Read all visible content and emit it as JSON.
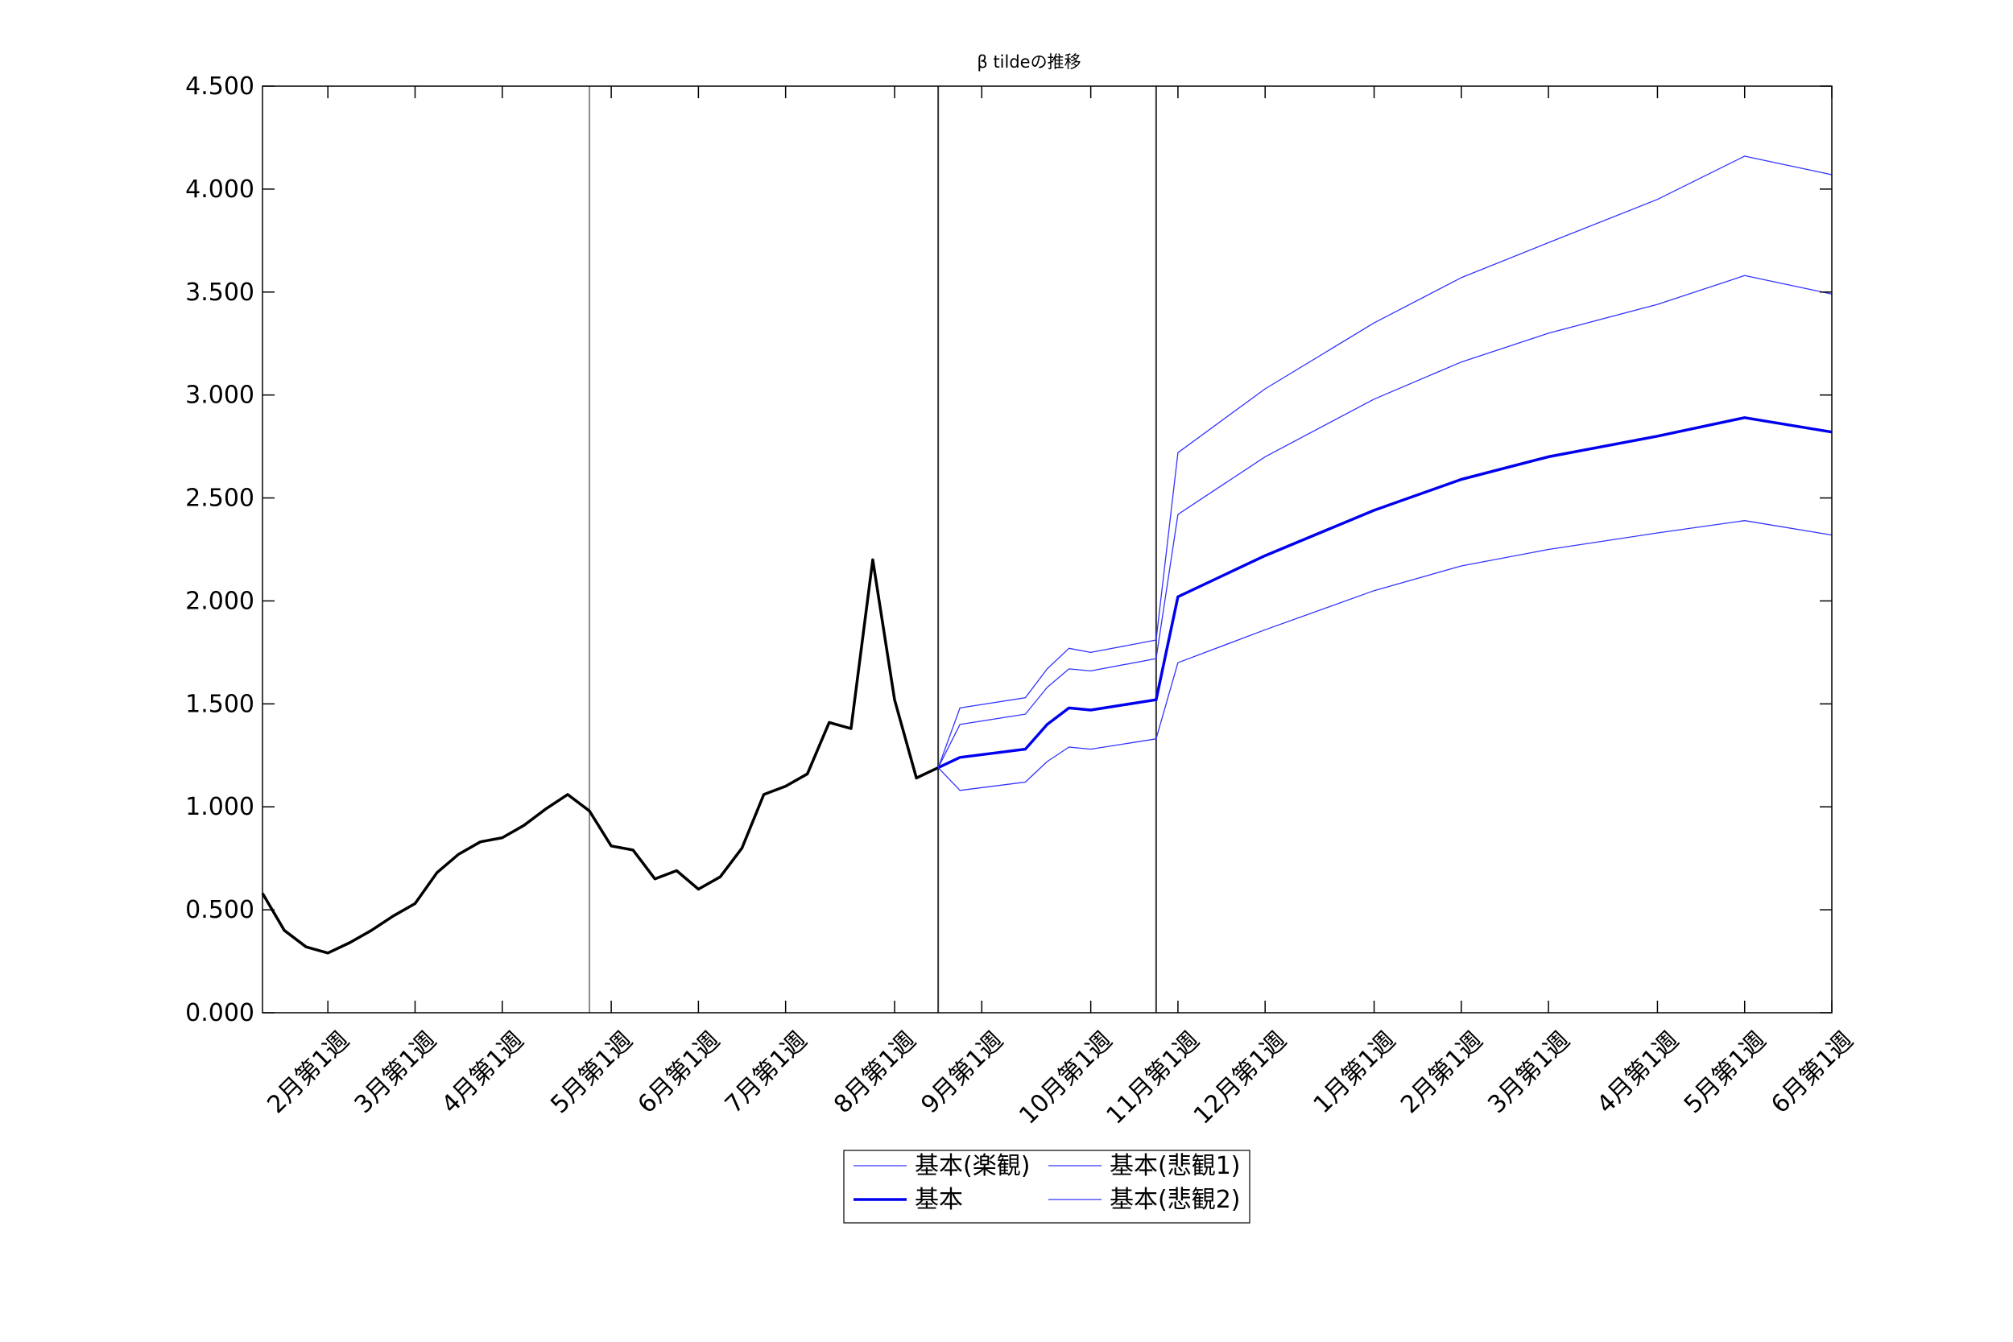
{
  "chart_data": {
    "type": "line",
    "title": "β tildeの推移",
    "xlabel": "",
    "ylabel": "",
    "ylim": [
      0,
      4.5
    ],
    "y_ticks": [
      "0.000",
      "0.500",
      "1.000",
      "1.500",
      "2.000",
      "2.500",
      "3.000",
      "3.500",
      "4.000",
      "4.500"
    ],
    "x_range_weeks": [
      0,
      72
    ],
    "x_ticks": [
      {
        "label": "2月第1週",
        "week": 3
      },
      {
        "label": "3月第1週",
        "week": 7
      },
      {
        "label": "4月第1週",
        "week": 11
      },
      {
        "label": "5月第1週",
        "week": 16
      },
      {
        "label": "6月第1週",
        "week": 20
      },
      {
        "label": "7月第1週",
        "week": 24
      },
      {
        "label": "8月第1週",
        "week": 29
      },
      {
        "label": "9月第1週",
        "week": 33
      },
      {
        "label": "10月第1週",
        "week": 38
      },
      {
        "label": "11月第1週",
        "week": 42
      },
      {
        "label": "12月第1週",
        "week": 46
      },
      {
        "label": "1月第1週",
        "week": 51
      },
      {
        "label": "2月第1週",
        "week": 55
      },
      {
        "label": "3月第1週",
        "week": 59
      },
      {
        "label": "4月第1週",
        "week": 64
      },
      {
        "label": "5月第1週",
        "week": 68
      },
      {
        "label": "6月第1週",
        "week": 72
      }
    ],
    "vertical_lines_weeks": [
      15,
      31,
      41
    ],
    "legend_position": "bottom-center",
    "series": [
      {
        "key": "actual",
        "color": "#000000",
        "width": "thick",
        "x": [
          0,
          1,
          2,
          3,
          4,
          5,
          6,
          7,
          8,
          9,
          10,
          11,
          12,
          13,
          14,
          15,
          16,
          17,
          18,
          19,
          20,
          21,
          22,
          23,
          24,
          25,
          26,
          27,
          28,
          29,
          30,
          31
        ],
        "values": [
          0.58,
          0.4,
          0.32,
          0.29,
          0.34,
          0.4,
          0.47,
          0.53,
          0.68,
          0.77,
          0.83,
          0.85,
          0.91,
          0.99,
          1.06,
          0.98,
          0.81,
          0.79,
          0.65,
          0.69,
          0.6,
          0.66,
          0.8,
          1.06,
          1.1,
          1.16,
          1.41,
          1.38,
          2.2,
          1.52,
          1.14,
          1.19
        ]
      },
      {
        "key": "optimistic",
        "name": "基本(楽観)",
        "color": "#3333ff",
        "width": "thin",
        "x": [
          31,
          32,
          35,
          36,
          37,
          38,
          41,
          42,
          46,
          51,
          55,
          59,
          64,
          68,
          72
        ],
        "values": [
          1.19,
          1.08,
          1.12,
          1.22,
          1.29,
          1.28,
          1.33,
          1.7,
          1.86,
          2.05,
          2.17,
          2.25,
          2.33,
          2.39,
          2.32
        ]
      },
      {
        "key": "pessimistic1",
        "name": "基本(悲観1)",
        "color": "#3333ff",
        "width": "thin",
        "x": [
          31,
          32,
          35,
          36,
          37,
          38,
          41,
          42,
          46,
          51,
          55,
          59,
          64,
          68,
          72
        ],
        "values": [
          1.19,
          1.4,
          1.45,
          1.58,
          1.67,
          1.66,
          1.72,
          2.42,
          2.7,
          2.98,
          3.16,
          3.3,
          3.44,
          3.58,
          3.49
        ]
      },
      {
        "key": "base",
        "name": "基本",
        "color": "#0000ee",
        "width": "thick",
        "x": [
          31,
          32,
          35,
          36,
          37,
          38,
          41,
          42,
          46,
          51,
          55,
          59,
          64,
          68,
          72
        ],
        "values": [
          1.19,
          1.24,
          1.28,
          1.4,
          1.48,
          1.47,
          1.52,
          2.02,
          2.22,
          2.44,
          2.59,
          2.7,
          2.8,
          2.89,
          2.82
        ]
      },
      {
        "key": "pessimistic2",
        "name": "基本(悲観2)",
        "color": "#3333ff",
        "width": "thin",
        "x": [
          31,
          32,
          35,
          36,
          37,
          38,
          41,
          42,
          46,
          51,
          55,
          59,
          64,
          68,
          72
        ],
        "values": [
          1.19,
          1.48,
          1.53,
          1.67,
          1.77,
          1.75,
          1.81,
          2.72,
          3.03,
          3.35,
          3.57,
          3.74,
          3.95,
          4.16,
          4.07
        ]
      }
    ],
    "legend": [
      {
        "label": "基本(楽観)",
        "series": "optimistic"
      },
      {
        "label": "基本(悲観1)",
        "series": "pessimistic1"
      },
      {
        "label": "基本",
        "series": "base"
      },
      {
        "label": "基本(悲観2)",
        "series": "pessimistic2"
      }
    ]
  }
}
